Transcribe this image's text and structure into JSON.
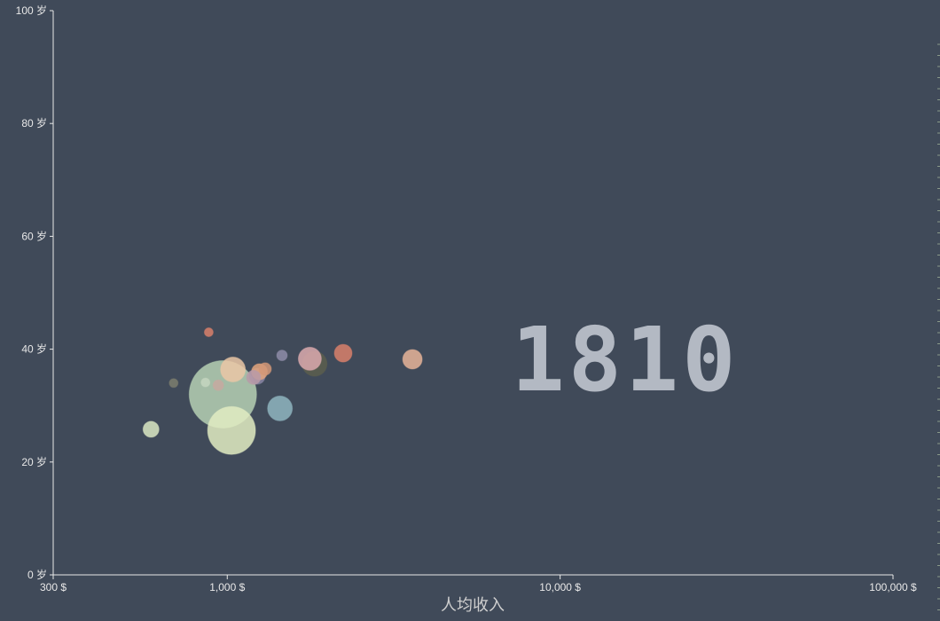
{
  "chart_data": {
    "type": "scatter",
    "year": "1810",
    "x_axis": {
      "label": "人均收入",
      "scale": "log",
      "range": [
        300,
        100000
      ],
      "ticks": [
        {
          "value": 300,
          "label": "300 $"
        },
        {
          "value": 1000,
          "label": "1,000 $"
        },
        {
          "value": 10000,
          "label": "10,000 $"
        },
        {
          "value": 100000,
          "label": "100,000 $"
        }
      ]
    },
    "y_axis": {
      "label": "",
      "scale": "linear",
      "range": [
        0,
        100
      ],
      "ticks": [
        {
          "value": 0,
          "label": "0 岁"
        },
        {
          "value": 20,
          "label": "20 岁"
        },
        {
          "value": 40,
          "label": "40 岁"
        },
        {
          "value": 60,
          "label": "60 岁"
        },
        {
          "value": 80,
          "label": "80 岁"
        },
        {
          "value": 100,
          "label": "100 岁"
        }
      ]
    },
    "grid": false,
    "points": [
      {
        "income": 970,
        "life": 32.0,
        "size": 38,
        "color": "#b6d0b4"
      },
      {
        "income": 1030,
        "life": 25.6,
        "size": 27,
        "color": "#e2ecc2"
      },
      {
        "income": 1440,
        "life": 29.5,
        "size": 14,
        "color": "#8fb5bf"
      },
      {
        "income": 1040,
        "life": 36.4,
        "size": 14,
        "color": "#ebc7a6"
      },
      {
        "income": 1830,
        "life": 37.4,
        "size": 14,
        "color": "#5c5e4e"
      },
      {
        "income": 1770,
        "life": 38.3,
        "size": 13,
        "color": "#dcaaae"
      },
      {
        "income": 3600,
        "life": 38.2,
        "size": 11,
        "color": "#e7b499"
      },
      {
        "income": 2230,
        "life": 39.3,
        "size": 10,
        "color": "#d9806b"
      },
      {
        "income": 1230,
        "life": 35.2,
        "size": 9,
        "color": "#8b86a4"
      },
      {
        "income": 1250,
        "life": 36.0,
        "size": 9,
        "color": "#e3a47c"
      },
      {
        "income": 1200,
        "life": 35.0,
        "size": 8,
        "color": "#b99aa8"
      },
      {
        "income": 1300,
        "life": 36.5,
        "size": 7,
        "color": "#d39878"
      },
      {
        "income": 1460,
        "life": 38.9,
        "size": 6,
        "color": "#8e8ca8"
      },
      {
        "income": 940,
        "life": 33.6,
        "size": 6,
        "color": "#c7a9a0"
      },
      {
        "income": 590,
        "life": 25.8,
        "size": 9,
        "color": "#dbe7c3"
      },
      {
        "income": 690,
        "life": 34.0,
        "size": 5,
        "color": "#7c7e6e"
      },
      {
        "income": 880,
        "life": 43.0,
        "size": 5,
        "color": "#d9806b"
      },
      {
        "income": 860,
        "life": 34.1,
        "size": 5,
        "color": "#c5d6c0"
      }
    ]
  }
}
